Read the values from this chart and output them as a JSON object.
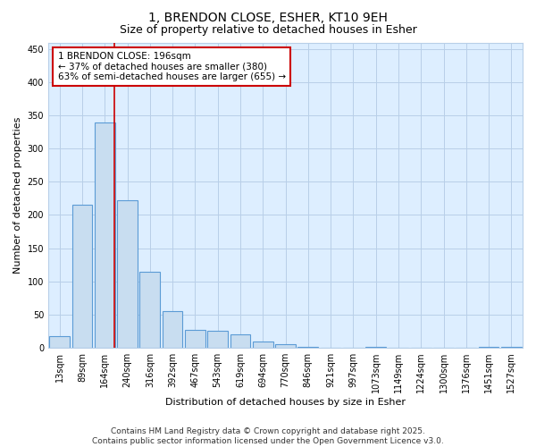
{
  "title": "1, BRENDON CLOSE, ESHER, KT10 9EH",
  "subtitle": "Size of property relative to detached houses in Esher",
  "xlabel": "Distribution of detached houses by size in Esher",
  "ylabel": "Number of detached properties",
  "categories": [
    "13sqm",
    "89sqm",
    "164sqm",
    "240sqm",
    "316sqm",
    "392sqm",
    "467sqm",
    "543sqm",
    "619sqm",
    "694sqm",
    "770sqm",
    "846sqm",
    "921sqm",
    "997sqm",
    "1073sqm",
    "1149sqm",
    "1224sqm",
    "1300sqm",
    "1376sqm",
    "1451sqm",
    "1527sqm"
  ],
  "values": [
    17,
    216,
    340,
    222,
    114,
    55,
    27,
    26,
    20,
    10,
    6,
    1,
    0,
    0,
    1,
    0,
    0,
    0,
    0,
    1,
    1
  ],
  "bar_color": "#c8ddf0",
  "bar_edge_color": "#5b9bd5",
  "bar_edge_width": 0.8,
  "bg_color": "#ddeeff",
  "grid_color": "#b8cfe8",
  "ylim": [
    0,
    460
  ],
  "yticks": [
    0,
    50,
    100,
    150,
    200,
    250,
    300,
    350,
    400,
    450
  ],
  "vline_x_index": 2.42,
  "vline_color": "#cc0000",
  "annotation_text": "1 BRENDON CLOSE: 196sqm\n← 37% of detached houses are smaller (380)\n63% of semi-detached houses are larger (655) →",
  "footer_text": "Contains HM Land Registry data © Crown copyright and database right 2025.\nContains public sector information licensed under the Open Government Licence v3.0.",
  "title_fontsize": 10,
  "subtitle_fontsize": 9,
  "annot_fontsize": 7.5,
  "footer_fontsize": 6.5,
  "tick_fontsize": 7,
  "ylabel_fontsize": 8,
  "xlabel_fontsize": 8
}
